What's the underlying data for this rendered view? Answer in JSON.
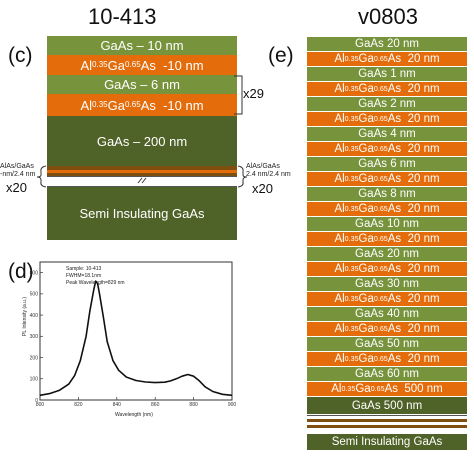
{
  "left": {
    "title": "10-413",
    "panel_c": "(c)",
    "layers": [
      {
        "text_html": "GaAs – 10 nm",
        "material": "green"
      },
      {
        "text_html": "Al<sub>0.35</sub>Ga<sub>0.65</sub>As &nbsp;-10 nm",
        "material": "orange"
      },
      {
        "text_html": "GaAs – 6 nm",
        "material": "green"
      },
      {
        "text_html": "Al<sub>0.35</sub>Ga<sub>0.65</sub>As &nbsp;-10 nm",
        "material": "orange"
      },
      {
        "text_html": "GaAs – 200 nm",
        "material": "dgreen"
      },
      {
        "text_html": "Semi Insulating GaAs",
        "material": "dgreen"
      }
    ],
    "repeat_label": "x29",
    "sl_left_label": "AlAs/GaAs\n-nm/2.4 nm",
    "sl_right_label": "AlAs/GaAs\n2.4 nm/2.4 nm",
    "x20_left": "x20",
    "x20_right": "x20"
  },
  "pl": {
    "panel_d": "(d)",
    "sample": "Sample: 10-413",
    "fwhm": "FWHM=18.1nm",
    "peak": "Peak Wavelength=829 nm",
    "ylabel": "PL Intensity (a.u.)",
    "xlabel": "Wavelength (nm)",
    "x_ticks": [
      "800",
      "820",
      "840",
      "860",
      "880",
      "900"
    ],
    "y_ticks": [
      "0",
      "100",
      "200",
      "300",
      "400",
      "500",
      "600"
    ]
  },
  "chart_data": {
    "type": "line",
    "xlabel": "Wavelength (nm)",
    "ylabel": "PL Intensity (a.u.)",
    "xlim": [
      800,
      900
    ],
    "ylim": [
      0,
      650
    ],
    "series": [
      {
        "x": [
          800,
          805,
          810,
          815,
          818,
          821,
          824,
          826,
          828,
          829,
          830,
          831,
          833,
          835,
          838,
          841,
          845,
          850,
          855,
          860,
          865,
          868,
          871,
          874,
          877,
          880,
          883,
          886,
          890,
          895,
          900
        ],
        "values": [
          22,
          30,
          45,
          75,
          115,
          185,
          300,
          420,
          520,
          560,
          548,
          500,
          390,
          275,
          185,
          140,
          108,
          92,
          85,
          82,
          84,
          90,
          100,
          112,
          120,
          112,
          90,
          62,
          40,
          27,
          22
        ]
      }
    ]
  },
  "right": {
    "title": "v0803",
    "panel_e": "(e)",
    "layers": [
      {
        "text_html": "GaAs 20 nm",
        "material": "green"
      },
      {
        "text_html": "Al<sub>0.35</sub>Ga<sub>0.65</sub>As &nbsp;20 nm",
        "material": "orange"
      },
      {
        "text_html": "GaAs 1 nm",
        "material": "green"
      },
      {
        "text_html": "Al<sub>0.35</sub>Ga<sub>0.65</sub>As &nbsp;20 nm",
        "material": "orange"
      },
      {
        "text_html": "GaAs 2 nm",
        "material": "green"
      },
      {
        "text_html": "Al<sub>0.35</sub>Ga<sub>0.65</sub>As &nbsp;20 nm",
        "material": "orange"
      },
      {
        "text_html": "GaAs 4 nm",
        "material": "green"
      },
      {
        "text_html": "Al<sub>0.35</sub>Ga<sub>0.65</sub>As &nbsp;20 nm",
        "material": "orange"
      },
      {
        "text_html": "GaAs 6 nm",
        "material": "green"
      },
      {
        "text_html": "Al<sub>0.35</sub>Ga<sub>0.65</sub>As &nbsp;20 nm",
        "material": "orange"
      },
      {
        "text_html": "GaAs 8 nm",
        "material": "green"
      },
      {
        "text_html": "Al<sub>0.35</sub>Ga<sub>0.65</sub>As &nbsp;20 nm",
        "material": "orange"
      },
      {
        "text_html": "GaAs 10 nm",
        "material": "green"
      },
      {
        "text_html": "Al<sub>0.35</sub>Ga<sub>0.65</sub>As &nbsp;20 nm",
        "material": "orange"
      },
      {
        "text_html": "GaAs 20 nm",
        "material": "green"
      },
      {
        "text_html": "Al<sub>0.35</sub>Ga<sub>0.65</sub>As &nbsp;20 nm",
        "material": "orange"
      },
      {
        "text_html": "GaAs 30 nm",
        "material": "green"
      },
      {
        "text_html": "Al<sub>0.35</sub>Ga<sub>0.65</sub>As &nbsp;20 nm",
        "material": "orange"
      },
      {
        "text_html": "GaAs 40 nm",
        "material": "green"
      },
      {
        "text_html": "Al<sub>0.35</sub>Ga<sub>0.65</sub>As &nbsp;20 nm",
        "material": "orange"
      },
      {
        "text_html": "GaAs 50 nm",
        "material": "green"
      },
      {
        "text_html": "Al<sub>0.35</sub>Ga<sub>0.65</sub>As &nbsp;20 nm",
        "material": "orange"
      },
      {
        "text_html": "GaAs 60 nm",
        "material": "green"
      },
      {
        "text_html": "Al<sub>0.35</sub>Ga<sub>0.65</sub>As &nbsp;500 nm",
        "material": "orange"
      },
      {
        "text_html": "GaAs 500 nm",
        "material": "dgreen"
      },
      {
        "text_html": "Semi Insulating GaAs",
        "material": "dgreen"
      }
    ]
  },
  "colors": {
    "green": "#77933c",
    "orange": "#e46c0a",
    "dark_green": "#4f6228",
    "brown": "#7f4f10"
  }
}
